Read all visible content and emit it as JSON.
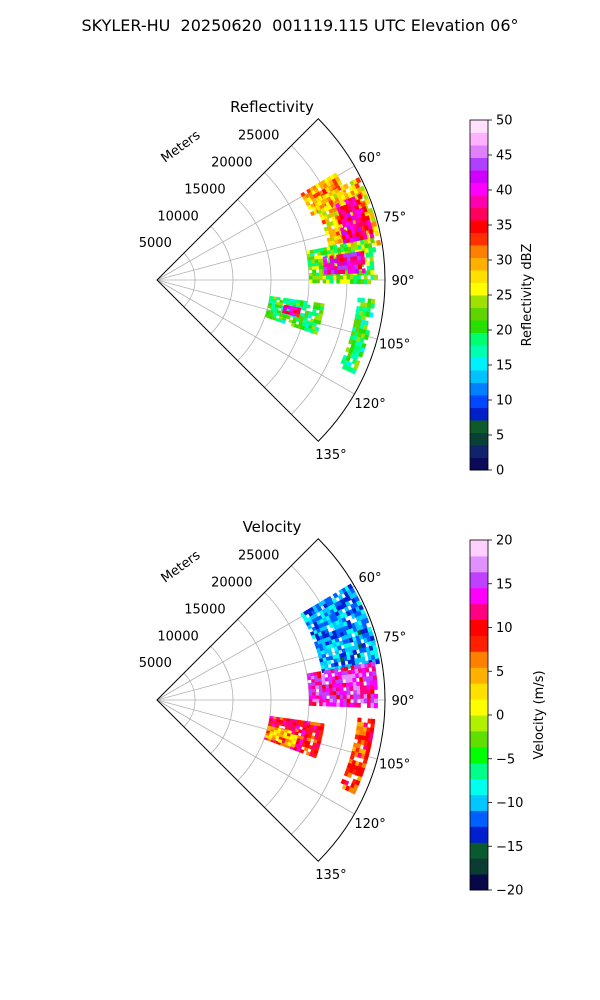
{
  "figure": {
    "title": "SKYLER-HU  20250620  001119.115 UTC Elevation 06°"
  },
  "chart_data": [
    {
      "type": "heatmap",
      "projection": "polar-sector",
      "title": "Reflectivity",
      "range_label": "Meters",
      "range_ticks": [
        "5000",
        "10000",
        "15000",
        "20000",
        "25000"
      ],
      "range_max": 30000,
      "azimuth_range": [
        45,
        135
      ],
      "azimuth_ticks": [
        "60°",
        "75°",
        "90°",
        "105°",
        "120°",
        "135°"
      ],
      "colorbar": {
        "label": "Reflectivity dBZ",
        "min": 0,
        "max": 50,
        "ticks": [
          "0",
          "5",
          "10",
          "15",
          "20",
          "25",
          "30",
          "35",
          "40",
          "45",
          "50"
        ]
      },
      "echo_regions": [
        {
          "az": [
            59,
            67
          ],
          "range": [
            22000,
            27000
          ],
          "value": 30
        },
        {
          "az": [
            63,
            80
          ],
          "range": [
            23000,
            29500
          ],
          "value": 28
        },
        {
          "az": [
            67,
            79
          ],
          "range": [
            25000,
            29000
          ],
          "value": 38
        },
        {
          "az": [
            79,
            90
          ],
          "range": [
            20000,
            29000
          ],
          "value": 22
        },
        {
          "az": [
            82,
            87
          ],
          "range": [
            22000,
            27000
          ],
          "value": 40
        },
        {
          "az": [
            98,
            108
          ],
          "range": [
            15000,
            22000
          ],
          "value": 20
        },
        {
          "az": [
            101,
            104
          ],
          "range": [
            17000,
            19000
          ],
          "value": 38
        },
        {
          "az": [
            95,
            115
          ],
          "range": [
            26500,
            28500
          ],
          "value": 20
        }
      ]
    },
    {
      "type": "heatmap",
      "projection": "polar-sector",
      "title": "Velocity",
      "range_label": "Meters",
      "range_ticks": [
        "5000",
        "10000",
        "15000",
        "20000",
        "25000"
      ],
      "range_max": 30000,
      "azimuth_range": [
        45,
        135
      ],
      "azimuth_ticks": [
        "60°",
        "75°",
        "90°",
        "105°",
        "120°",
        "135°"
      ],
      "colorbar": {
        "label": "Velocity (m/s)",
        "min": -20,
        "max": 20,
        "ticks": [
          "−20",
          "−15",
          "−10",
          "−5",
          "0",
          "5",
          "10",
          "15",
          "20"
        ]
      },
      "echo_regions": [
        {
          "az": [
            59,
            80
          ],
          "range": [
            22000,
            29500
          ],
          "value": -11
        },
        {
          "az": [
            80,
            91
          ],
          "range": [
            20000,
            29000
          ],
          "value": 14
        },
        {
          "az": [
            98,
            110
          ],
          "range": [
            15000,
            22000
          ],
          "value": 10
        },
        {
          "az": [
            103,
            108
          ],
          "range": [
            15000,
            19000
          ],
          "value": 4
        },
        {
          "az": [
            95,
            115
          ],
          "range": [
            26500,
            28500
          ],
          "value": 8
        }
      ]
    }
  ],
  "colors": {
    "grid": "#b0b0b0",
    "frame": "#000000"
  }
}
